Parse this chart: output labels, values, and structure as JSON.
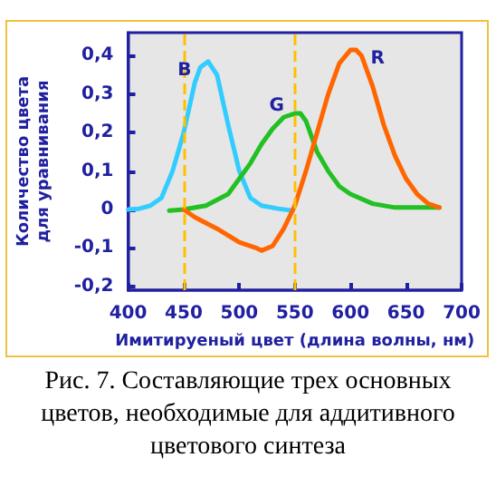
{
  "chart_data": {
    "type": "line",
    "xlabel": "Имитируеный цвет (длина волны, нм)",
    "ylabel": "Количество цвета\nдля уравнивания",
    "xlim": [
      400,
      700
    ],
    "xticks": [
      400,
      450,
      500,
      550,
      600,
      650,
      700
    ],
    "ylim": [
      -0.21,
      0.46
    ],
    "yticks": [
      {
        "value": -0.2,
        "label": "-0,2"
      },
      {
        "value": -0.1,
        "label": "-0,1"
      },
      0,
      {
        "value": 0.1,
        "label": "0,1"
      },
      {
        "value": 0.2,
        "label": "0,2"
      },
      {
        "value": 0.3,
        "label": "0,3"
      },
      {
        "value": 0.4,
        "label": "0,4"
      }
    ],
    "grid": false,
    "legend": false,
    "marker": "none",
    "line_style": "solid",
    "series": [
      {
        "name": "B",
        "color": "#33ccff",
        "x": [
          400,
          410,
          420,
          430,
          440,
          450,
          460,
          465,
          472,
          480,
          490,
          500,
          510,
          520,
          535,
          548
        ],
        "values": [
          0,
          0.002,
          0.01,
          0.03,
          0.1,
          0.2,
          0.33,
          0.37,
          0.385,
          0.35,
          0.22,
          0.1,
          0.03,
          0.01,
          0.002,
          -0.003
        ]
      },
      {
        "name": "G",
        "color": "#22c022",
        "x": [
          437,
          450,
          470,
          490,
          510,
          520,
          530,
          540,
          550,
          555,
          560,
          570,
          580,
          590,
          600,
          620,
          640,
          680
        ],
        "values": [
          -0.003,
          0,
          0.01,
          0.04,
          0.12,
          0.17,
          0.21,
          0.24,
          0.25,
          0.25,
          0.23,
          0.15,
          0.1,
          0.06,
          0.04,
          0.015,
          0.005,
          0.005
        ]
      },
      {
        "name": "R",
        "color": "#ff6600",
        "x": [
          450,
          460,
          480,
          500,
          515,
          520,
          530,
          540,
          550,
          560,
          570,
          580,
          590,
          600,
          605,
          610,
          620,
          630,
          640,
          650,
          660,
          670,
          680
        ],
        "values": [
          0,
          -0.02,
          -0.05,
          -0.085,
          -0.1,
          -0.107,
          -0.095,
          -0.05,
          0.01,
          0.1,
          0.2,
          0.3,
          0.38,
          0.415,
          0.415,
          0.4,
          0.32,
          0.22,
          0.14,
          0.08,
          0.04,
          0.015,
          0.005
        ]
      }
    ],
    "ref_lines": [
      {
        "axis": "x",
        "value": 450,
        "color": "#ffc000",
        "line_style": "dashed"
      },
      {
        "axis": "x",
        "value": 550,
        "color": "#ffc000",
        "line_style": "dashed"
      }
    ],
    "annotations": [
      "Рис. 7. Составляющие трех основных цветов, необходимые для аддитивного цветового синтеза"
    ]
  }
}
